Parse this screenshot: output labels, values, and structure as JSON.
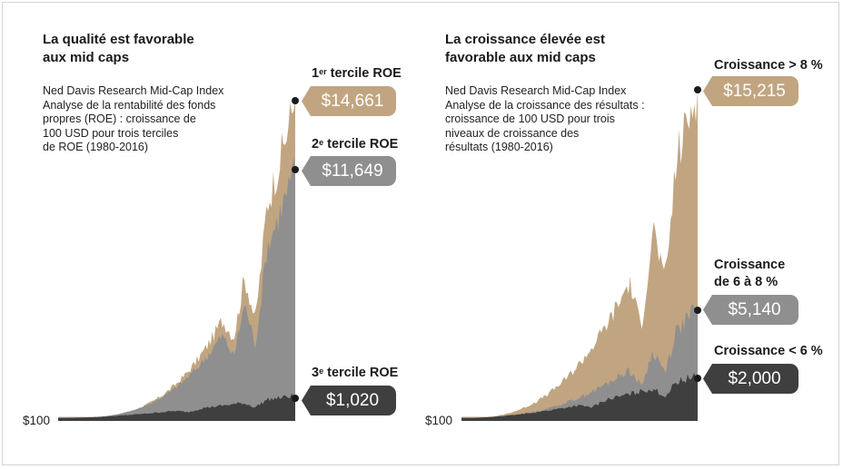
{
  "colors": {
    "tan": "#c1a581",
    "gray": "#8f8f8f",
    "dark": "#3f3f3f"
  },
  "chart_data": [
    {
      "type": "area",
      "title": "La qualité est favorable\naux mid caps",
      "subtitle": "Ned Davis Research Mid-Cap Index\nAnalyse de la rentabilité des fonds\npropres (ROE) : croissance de\n100 USD pour trois terciles\nde ROE (1980-2016)",
      "y_start_label": "$100",
      "x_range": [
        1980,
        2016
      ],
      "series": [
        {
          "label_main": "1",
          "label_sup": "er",
          "label_rest": " tercile ROE",
          "end_label": "$14,661",
          "start": 100,
          "end": 14661,
          "color": "tan"
        },
        {
          "label_main": "2",
          "label_sup": "e",
          "label_rest": " tercile ROE",
          "end_label": "$11,649",
          "start": 100,
          "end": 11649,
          "color": "gray"
        },
        {
          "label_main": "3",
          "label_sup": "e",
          "label_rest": " tercile ROE",
          "end_label": "$1,020",
          "start": 100,
          "end": 1020,
          "color": "dark"
        }
      ]
    },
    {
      "type": "area",
      "title": "La croissance élevée est\nfavorable aux mid caps",
      "subtitle": "Ned Davis Research Mid-Cap Index\nAnalyse de la croissance des résultats :\ncroissance de 100 USD pour trois\nniveaux de croissance des\nrésultats (1980-2016)",
      "y_start_label": "$100",
      "x_range": [
        1980,
        2016
      ],
      "series": [
        {
          "label": "Croissance > 8 %",
          "end_label": "$15,215",
          "start": 100,
          "end": 15215,
          "color": "tan"
        },
        {
          "label": "Croissance\nde 6 à 8 %",
          "end_label": "$5,140",
          "start": 100,
          "end": 5140,
          "color": "gray"
        },
        {
          "label": "Croissance < 6 %",
          "end_label": "$2,000",
          "start": 100,
          "end": 2000,
          "color": "dark"
        }
      ]
    }
  ]
}
